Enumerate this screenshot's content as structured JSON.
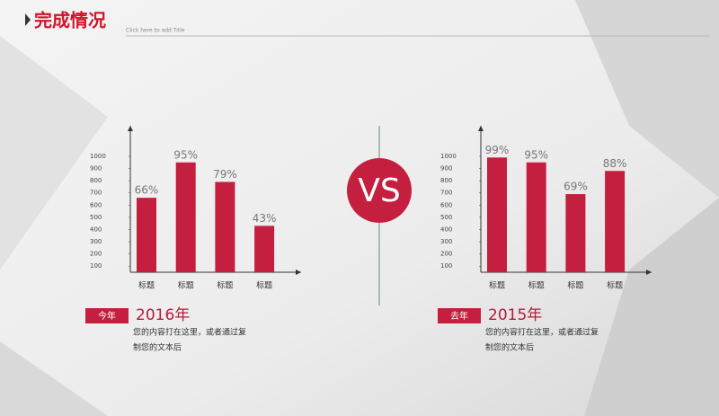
{
  "header": {
    "title": "完成情况",
    "subtitle": "Click here to add Title"
  },
  "vs": "VS",
  "chart_data": [
    {
      "type": "bar",
      "categories": [
        "标题",
        "标题",
        "标题",
        "标题"
      ],
      "values": [
        660,
        950,
        790,
        430
      ],
      "value_labels": [
        "66%",
        "95%",
        "79%",
        "43%"
      ],
      "color": "#c41f3e",
      "ylim": [
        50,
        1250
      ],
      "yticks": [
        100,
        200,
        300,
        400,
        500,
        600,
        700,
        800,
        900,
        1000
      ]
    },
    {
      "type": "bar",
      "categories": [
        "标题",
        "标题",
        "标题",
        "标题"
      ],
      "values": [
        990,
        950,
        690,
        880
      ],
      "value_labels": [
        "99%",
        "95%",
        "69%",
        "88%"
      ],
      "color": "#c41f3e",
      "ylim": [
        50,
        1250
      ],
      "yticks": [
        100,
        200,
        300,
        400,
        500,
        600,
        700,
        800,
        900,
        1000
      ]
    }
  ],
  "panels": [
    {
      "badge": "今年",
      "year": "2016年",
      "lines": [
        "您的内容打在这里，或者通过复",
        "制您的文本后"
      ]
    },
    {
      "badge": "去年",
      "year": "2015年",
      "lines": [
        "您的内容打在这里，或者通过复",
        "制您的文本后"
      ]
    }
  ]
}
